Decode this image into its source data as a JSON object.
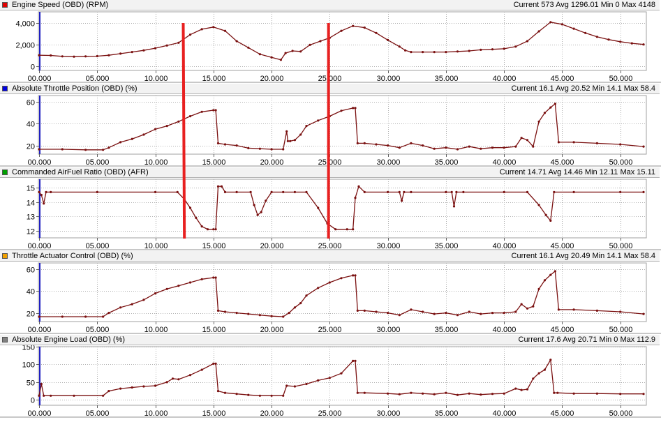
{
  "chart_data": [
    {
      "type": "line",
      "title": "Engine Speed (OBD) (RPM)",
      "stats": "Current 573 Avg 1296.01 Min 0 Max 4148",
      "color": "#e00000",
      "ylim": [
        -400,
        5000
      ],
      "yticks": [
        0,
        2000,
        4000
      ],
      "ytick_labels": [
        "0",
        "2,000",
        "4,000"
      ],
      "series": [
        {
          "x": [
            0,
            1,
            2,
            3,
            4,
            5,
            6,
            7,
            8,
            9,
            10,
            11,
            12,
            13,
            14,
            15,
            16,
            17,
            18,
            19,
            20,
            20.8,
            21.2,
            21.8,
            22.5,
            23.3,
            24.2,
            25,
            26,
            27,
            28,
            29,
            30,
            31,
            31.5,
            32,
            33,
            34,
            35,
            36,
            37,
            38,
            39,
            40,
            41,
            42,
            43,
            44,
            45,
            46,
            47,
            48,
            49,
            50,
            51,
            52
          ],
          "y": [
            1000,
            980,
            900,
            870,
            900,
            920,
            1000,
            1150,
            1300,
            1450,
            1650,
            1900,
            2150,
            2900,
            3400,
            3600,
            3250,
            2300,
            1700,
            1100,
            800,
            580,
            1200,
            1400,
            1350,
            1950,
            2300,
            2600,
            3250,
            3700,
            3550,
            3050,
            2400,
            1800,
            1450,
            1300,
            1300,
            1300,
            1300,
            1350,
            1400,
            1500,
            1550,
            1600,
            1800,
            2300,
            3200,
            4050,
            3850,
            3450,
            3050,
            2700,
            2450,
            2250,
            2100,
            2000
          ]
        }
      ]
    },
    {
      "type": "line",
      "title": "Absolute Throttle Position (OBD) (%)",
      "stats": "Current 16.1 Avg 20.52 Min 14.1 Max 58.4",
      "color": "#0000e0",
      "ylim": [
        12,
        66
      ],
      "yticks": [
        20,
        40,
        60
      ],
      "ytick_labels": [
        "20",
        "40",
        "60"
      ],
      "series": [
        {
          "x": [
            0,
            2,
            4,
            5.5,
            6,
            7,
            8,
            9,
            10,
            11,
            12,
            13,
            14,
            15,
            15.2,
            15.4,
            16,
            17,
            18,
            19,
            20,
            21,
            21.3,
            21.4,
            21.6,
            22,
            22.5,
            23,
            24,
            25,
            26,
            27,
            27.2,
            27.4,
            28,
            29,
            30,
            31,
            32,
            33,
            34,
            35,
            36,
            37,
            38,
            39,
            40,
            41,
            41.5,
            42,
            42.5,
            43,
            43.5,
            44,
            44.4,
            44.7,
            46,
            48,
            50,
            52
          ],
          "y": [
            16.5,
            16.5,
            16,
            16,
            18,
            23,
            26,
            30,
            35,
            38,
            42,
            47,
            51,
            52.5,
            52.5,
            22,
            21,
            20,
            17.5,
            17,
            16.5,
            16.5,
            33,
            24,
            24,
            25,
            30,
            38,
            43,
            47,
            52,
            54.5,
            54.5,
            22,
            22,
            21,
            20,
            18,
            22,
            20,
            17,
            18,
            16.5,
            19,
            17,
            18,
            18,
            19,
            27,
            25,
            19,
            42,
            50,
            55,
            58.4,
            23,
            23,
            22,
            21,
            19
          ]
        }
      ]
    },
    {
      "type": "line",
      "title": "Commanded AirFuel Ratio (OBD) (AFR)",
      "stats": "Current 14.71 Avg 14.46 Min 12.11 Max 15.11",
      "color": "#00a000",
      "ylim": [
        11.5,
        15.6
      ],
      "yticks": [
        12,
        13,
        14,
        15
      ],
      "ytick_labels": [
        "12",
        "13",
        "14",
        "15"
      ],
      "series": [
        {
          "x": [
            0,
            0.2,
            0.4,
            0.6,
            1,
            5,
            10,
            11.9,
            12.5,
            13,
            13.5,
            14,
            14.5,
            15,
            15.2,
            15.4,
            15.7,
            16,
            17,
            18.2,
            18.5,
            18.8,
            19.1,
            19.5,
            20,
            21,
            22,
            23,
            24,
            24.8,
            25.5,
            26.5,
            27,
            27.2,
            27.5,
            28,
            30,
            31,
            31.2,
            31.4,
            32,
            35,
            35.5,
            35.7,
            35.9,
            36.5,
            40,
            42,
            43,
            43.6,
            44,
            44.3,
            46,
            50,
            52
          ],
          "y": [
            14.7,
            14.5,
            13.9,
            14.7,
            14.7,
            14.7,
            14.7,
            14.7,
            14.2,
            13.6,
            12.9,
            12.3,
            12.1,
            12.1,
            12.1,
            15.1,
            15.1,
            14.7,
            14.7,
            14.7,
            13.8,
            13.1,
            13.3,
            14.1,
            14.7,
            14.7,
            14.7,
            14.7,
            13.6,
            12.5,
            12.1,
            12.1,
            12.1,
            14.3,
            15.1,
            14.7,
            14.7,
            14.7,
            14.1,
            14.7,
            14.7,
            14.7,
            14.7,
            13.7,
            14.7,
            14.7,
            14.7,
            14.7,
            13.8,
            13.1,
            12.7,
            14.7,
            14.7,
            14.7,
            14.7
          ]
        }
      ]
    },
    {
      "type": "line",
      "title": "Throttle Actuator Control (OBD) (%)",
      "stats": "Current 16.1 Avg 20.49 Min 14.1 Max 58.4",
      "color": "#f0a000",
      "ylim": [
        12,
        66
      ],
      "yticks": [
        20,
        40,
        60
      ],
      "ytick_labels": [
        "20",
        "40",
        "60"
      ],
      "series": [
        {
          "x": [
            0,
            2,
            4,
            5.5,
            6,
            7,
            8,
            9,
            10,
            11,
            12,
            13,
            14,
            15,
            15.2,
            15.4,
            16,
            17,
            18,
            19,
            20,
            21,
            21.5,
            22,
            22.5,
            23,
            24,
            25,
            26,
            27,
            27.2,
            27.4,
            28,
            29,
            30,
            31,
            32,
            33,
            34,
            35,
            36,
            37,
            38,
            39,
            40,
            41,
            41.5,
            42,
            42.5,
            43,
            43.5,
            44,
            44.4,
            44.7,
            46,
            48,
            50,
            52
          ],
          "y": [
            16.5,
            16.5,
            16.5,
            16.5,
            20,
            25,
            28,
            32,
            38,
            42,
            45,
            48,
            51,
            52.5,
            52.5,
            22,
            21,
            20,
            19,
            18,
            17,
            16.5,
            20,
            25,
            29,
            36,
            43,
            48,
            52,
            54.5,
            54.5,
            22,
            22,
            21,
            20,
            18,
            23,
            21,
            19,
            20,
            18,
            21,
            19,
            20,
            20,
            21,
            28,
            24,
            26,
            42,
            50,
            55,
            58.4,
            23,
            23,
            22,
            21,
            19
          ]
        }
      ]
    },
    {
      "type": "line",
      "title": "Absolute Engine Load (OBD) (%)",
      "stats": "Current 17.6 Avg 20.71 Min 0 Max 112.9",
      "color": "#808080",
      "ylim": [
        -15,
        150
      ],
      "yticks": [
        0,
        50,
        100,
        150
      ],
      "ytick_labels": [
        "0",
        "50",
        "100",
        "150"
      ],
      "series": [
        {
          "x": [
            0,
            0.2,
            0.4,
            1,
            3,
            5.5,
            6,
            7,
            8,
            9,
            10,
            11,
            11.5,
            12,
            13,
            14,
            15,
            15.2,
            15.4,
            16,
            17,
            18,
            19,
            20,
            21,
            21.3,
            22,
            23,
            24,
            25,
            26,
            27,
            27.2,
            27.4,
            28,
            30,
            31,
            32,
            33,
            34,
            35,
            36,
            37,
            38,
            39,
            40,
            41,
            41.5,
            42,
            42.5,
            43,
            43.5,
            44,
            44.3,
            44.6,
            46,
            48,
            50,
            52
          ],
          "y": [
            12,
            45,
            12,
            12,
            12,
            12,
            25,
            32,
            35,
            38,
            40,
            50,
            60,
            58,
            70,
            85,
            102,
            102,
            25,
            20,
            17,
            14,
            12,
            12,
            12,
            40,
            38,
            45,
            55,
            62,
            75,
            110,
            110,
            20,
            20,
            18,
            16,
            20,
            18,
            16,
            20,
            14,
            18,
            15,
            17,
            18,
            32,
            28,
            30,
            60,
            75,
            85,
            112.9,
            20,
            20,
            18,
            18,
            17,
            17
          ]
        }
      ]
    }
  ],
  "x_axis": {
    "range": [
      0,
      52
    ],
    "ticks": [
      0,
      5,
      10,
      15,
      20,
      25,
      30,
      35,
      40,
      45,
      50
    ],
    "tick_labels": [
      "00.000",
      "05.000",
      "10.000",
      "15.000",
      "20.000",
      "25.000",
      "30.000",
      "35.000",
      "40.000",
      "45.000",
      "50.000"
    ]
  },
  "cursors": {
    "color": "#e82020",
    "lines": [
      {
        "x_top": 12.4,
        "x_bottom": 12.5
      },
      {
        "x_top": 24.9,
        "x_bottom": 24.9
      }
    ]
  },
  "marker_color": "#7a1010"
}
